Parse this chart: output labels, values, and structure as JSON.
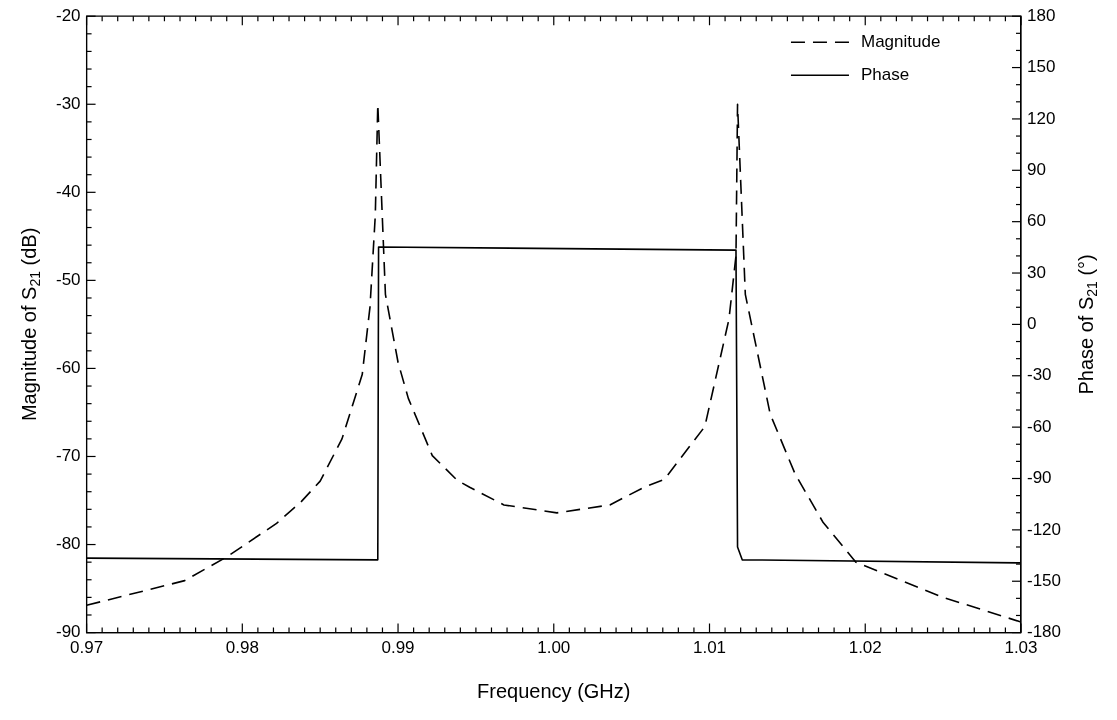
{
  "chart_data": {
    "type": "line",
    "xlabel": "Frequency (GHz)",
    "ylabel": "Magnitude of S$_{21}$ (dB)",
    "y2label": "Phase of S$_{21}$ (°)",
    "legend": "top right",
    "xlim": [
      0.97,
      1.03
    ],
    "ylim": [
      -90,
      -20
    ],
    "y2lim": [
      -180,
      180
    ],
    "xticks": [
      {
        "value": 0.97,
        "label": "0.97"
      },
      {
        "value": 0.971,
        "label": null
      },
      {
        "value": 0.972,
        "label": null
      },
      {
        "value": 0.973,
        "label": null
      },
      {
        "value": 0.974,
        "label": null
      },
      {
        "value": 0.975,
        "label": null
      },
      {
        "value": 0.976,
        "label": null
      },
      {
        "value": 0.977,
        "label": null
      },
      {
        "value": 0.978,
        "label": null
      },
      {
        "value": 0.979,
        "label": null
      },
      {
        "value": 0.98,
        "label": "0.98"
      },
      {
        "value": 0.981,
        "label": null
      },
      {
        "value": 0.982,
        "label": null
      },
      {
        "value": 0.983,
        "label": null
      },
      {
        "value": 0.984,
        "label": null
      },
      {
        "value": 0.985,
        "label": null
      },
      {
        "value": 0.986,
        "label": null
      },
      {
        "value": 0.987,
        "label": null
      },
      {
        "value": 0.988,
        "label": null
      },
      {
        "value": 0.989,
        "label": null
      },
      {
        "value": 0.99,
        "label": "0.99"
      },
      {
        "value": 0.991,
        "label": null
      },
      {
        "value": 0.992,
        "label": null
      },
      {
        "value": 0.993,
        "label": null
      },
      {
        "value": 0.994,
        "label": null
      },
      {
        "value": 0.995,
        "label": null
      },
      {
        "value": 0.996,
        "label": null
      },
      {
        "value": 0.997,
        "label": null
      },
      {
        "value": 0.998,
        "label": null
      },
      {
        "value": 0.999,
        "label": null
      },
      {
        "value": 1.0,
        "label": "1.00"
      },
      {
        "value": 1.001,
        "label": null
      },
      {
        "value": 1.002,
        "label": null
      },
      {
        "value": 1.003,
        "label": null
      },
      {
        "value": 1.004,
        "label": null
      },
      {
        "value": 1.005,
        "label": null
      },
      {
        "value": 1.006,
        "label": null
      },
      {
        "value": 1.007,
        "label": null
      },
      {
        "value": 1.008,
        "label": null
      },
      {
        "value": 1.009,
        "label": null
      },
      {
        "value": 1.01,
        "label": "1.01"
      },
      {
        "value": 1.011,
        "label": null
      },
      {
        "value": 1.012,
        "label": null
      },
      {
        "value": 1.013,
        "label": null
      },
      {
        "value": 1.014,
        "label": null
      },
      {
        "value": 1.015,
        "label": null
      },
      {
        "value": 1.016,
        "label": null
      },
      {
        "value": 1.017,
        "label": null
      },
      {
        "value": 1.018,
        "label": null
      },
      {
        "value": 1.019,
        "label": null
      },
      {
        "value": 1.02,
        "label": "1.02"
      },
      {
        "value": 1.021,
        "label": null
      },
      {
        "value": 1.022,
        "label": null
      },
      {
        "value": 1.023,
        "label": null
      },
      {
        "value": 1.024,
        "label": null
      },
      {
        "value": 1.025,
        "label": null
      },
      {
        "value": 1.026,
        "label": null
      },
      {
        "value": 1.027,
        "label": null
      },
      {
        "value": 1.028,
        "label": null
      },
      {
        "value": 1.029,
        "label": null
      },
      {
        "value": 1.03,
        "label": "1.03"
      }
    ],
    "yticks": [
      -90,
      {
        "value": -88,
        "label": null
      },
      {
        "value": -86,
        "label": null
      },
      {
        "value": -84,
        "label": null
      },
      {
        "value": -82,
        "label": null
      },
      -80,
      {
        "value": -78,
        "label": null
      },
      {
        "value": -76,
        "label": null
      },
      {
        "value": -74,
        "label": null
      },
      {
        "value": -72,
        "label": null
      },
      -70,
      {
        "value": -68,
        "label": null
      },
      {
        "value": -66,
        "label": null
      },
      {
        "value": -64,
        "label": null
      },
      {
        "value": -62,
        "label": null
      },
      -60,
      {
        "value": -58,
        "label": null
      },
      {
        "value": -56,
        "label": null
      },
      {
        "value": -54,
        "label": null
      },
      {
        "value": -52,
        "label": null
      },
      -50,
      {
        "value": -48,
        "label": null
      },
      {
        "value": -46,
        "label": null
      },
      {
        "value": -44,
        "label": null
      },
      {
        "value": -42,
        "label": null
      },
      -40,
      {
        "value": -38,
        "label": null
      },
      {
        "value": -36,
        "label": null
      },
      {
        "value": -34,
        "label": null
      },
      {
        "value": -32,
        "label": null
      },
      -30,
      {
        "value": -28,
        "label": null
      },
      {
        "value": -26,
        "label": null
      },
      {
        "value": -24,
        "label": null
      },
      {
        "value": -22,
        "label": null
      },
      -20
    ],
    "y2ticks": [
      -180,
      {
        "value": -170,
        "label": null
      },
      {
        "value": -160,
        "label": null
      },
      -150,
      {
        "value": -140,
        "label": null
      },
      {
        "value": -130,
        "label": null
      },
      -120,
      {
        "value": -110,
        "label": null
      },
      {
        "value": -100,
        "label": null
      },
      -90,
      {
        "value": -80,
        "label": null
      },
      {
        "value": -70,
        "label": null
      },
      -60,
      {
        "value": -50,
        "label": null
      },
      {
        "value": -40,
        "label": null
      },
      -30,
      {
        "value": -20,
        "label": null
      },
      {
        "value": -10,
        "label": null
      },
      0,
      {
        "value": 10,
        "label": null
      },
      {
        "value": 20,
        "label": null
      },
      30,
      {
        "value": 40,
        "label": null
      },
      {
        "value": 50,
        "label": null
      },
      60,
      {
        "value": 70,
        "label": null
      },
      {
        "value": 80,
        "label": null
      },
      90,
      {
        "value": 100,
        "label": null
      },
      {
        "value": 110,
        "label": null
      },
      120,
      {
        "value": 130,
        "label": null
      },
      {
        "value": 140,
        "label": null
      },
      150,
      {
        "value": 160,
        "label": null
      },
      {
        "value": 170,
        "label": null
      },
      180
    ],
    "series": [
      {
        "name": "Magnitude",
        "color": "#000000",
        "line_style": "dashed",
        "x": [
          0.97,
          0.9763,
          0.979,
          0.9822,
          0.9838,
          0.985,
          0.9864,
          0.9877,
          0.9882,
          0.98854,
          0.9887,
          0.98919,
          0.99,
          0.99066,
          0.9922,
          0.9938,
          0.9946,
          0.9968,
          1.0002,
          1.0036,
          1.0058,
          1.0071,
          1.0097,
          1.01125,
          1.0117,
          1.0118,
          1.0123,
          1.0139,
          1.0155,
          1.0173,
          1.0194,
          1.025,
          1.03
        ],
        "values": [
          -86.9,
          -84.1,
          -81.4,
          -77.6,
          -75.1,
          -72.8,
          -68.0,
          -60.7,
          -53,
          -42.6,
          -30,
          -51.6,
          -59.3,
          -63.4,
          -69.9,
          -72.7,
          -73.5,
          -75.5,
          -76.4,
          -75.5,
          -73.5,
          -72.6,
          -66.6,
          -54.4,
          -47.2,
          -30,
          -51.6,
          -65.2,
          -72,
          -77.5,
          -82,
          -86,
          -88.8
        ]
      },
      {
        "name": "Phase",
        "color": "#000000",
        "line_style": "solid",
        "axis": "y2",
        "x": [
          0.97,
          0.9887,
          0.98875,
          1.0117,
          1.0118,
          1.0121,
          1.03
        ],
        "values": [
          -136.5,
          -137.5,
          45.2,
          43.4,
          -130,
          -137.5,
          -139.3
        ]
      }
    ]
  }
}
